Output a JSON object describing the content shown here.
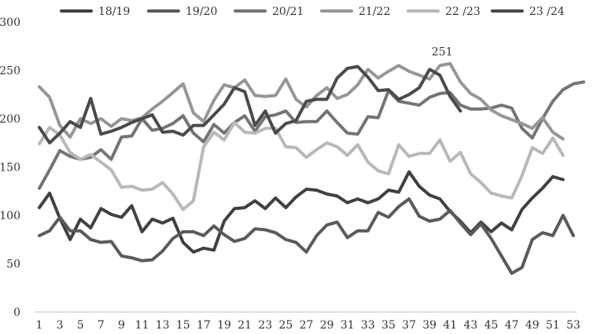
{
  "chart_data": {
    "type": "line",
    "title": "",
    "xlabel": "",
    "ylabel": "",
    "ylim": [
      0,
      300
    ],
    "yticks": [
      0,
      50,
      100,
      150,
      200,
      250,
      300
    ],
    "xlim": [
      1,
      53
    ],
    "xticks": [
      1,
      3,
      5,
      7,
      9,
      11,
      13,
      15,
      17,
      19,
      21,
      23,
      25,
      27,
      29,
      31,
      33,
      35,
      37,
      39,
      41,
      43,
      45,
      47,
      49,
      51,
      53
    ],
    "grid": false,
    "legend_position": "top",
    "annotations": [
      {
        "text": "251",
        "x": 40,
        "y": 251
      }
    ],
    "series": [
      {
        "name": "18/19",
        "color": "#404040",
        "x_start": 1,
        "values": [
          108,
          123,
          97,
          75,
          96,
          87,
          107,
          101,
          98,
          110,
          83,
          96,
          92,
          97,
          72,
          62,
          66,
          64,
          94,
          107,
          108,
          115,
          107,
          118,
          108,
          119,
          127,
          126,
          122,
          120,
          113,
          117,
          113,
          117,
          126,
          124,
          145,
          130,
          121,
          117,
          104,
          94,
          82,
          93,
          83,
          92,
          85,
          106,
          118,
          128,
          140,
          137
        ]
      },
      {
        "name": "19/20",
        "color": "#5a5a5a",
        "x_start": 1,
        "values": [
          79,
          84,
          98,
          84,
          84,
          75,
          72,
          73,
          58,
          56,
          53,
          54,
          63,
          76,
          83,
          83,
          79,
          89,
          80,
          73,
          76,
          86,
          85,
          82,
          75,
          72,
          62,
          79,
          90,
          93,
          77,
          84,
          84,
          103,
          98,
          109,
          117,
          99,
          94,
          96,
          105,
          92,
          80,
          91,
          76,
          58,
          40,
          46,
          75,
          82,
          79,
          100,
          79
        ]
      },
      {
        "name": "20/21",
        "color": "#747474",
        "x_start": 1,
        "values": [
          128,
          147,
          167,
          161,
          158,
          160,
          168,
          158,
          181,
          182,
          200,
          188,
          190,
          195,
          203,
          185,
          176,
          194,
          185,
          196,
          203,
          187,
          202,
          204,
          208,
          196,
          197,
          197,
          208,
          196,
          185,
          184,
          202,
          201,
          229,
          218,
          216,
          214,
          222,
          226,
          227,
          214,
          210,
          210,
          211,
          214,
          211,
          190,
          180,
          200,
          218,
          230,
          236,
          238
        ]
      },
      {
        "name": "21/22",
        "color": "#969696",
        "x_start": 1,
        "values": [
          233,
          222,
          193,
          181,
          200,
          195,
          200,
          192,
          200,
          198,
          201,
          210,
          218,
          227,
          236,
          206,
          197,
          219,
          235,
          232,
          240,
          224,
          223,
          224,
          241,
          220,
          212,
          224,
          232,
          221,
          225,
          235,
          251,
          242,
          249,
          255,
          249,
          245,
          241,
          255,
          257,
          238,
          226,
          220,
          209,
          203,
          199,
          195,
          190,
          201,
          186,
          179
        ]
      },
      {
        "name": "22 /23",
        "color": "#b8b8b8",
        "x_start": 1,
        "values": [
          174,
          191,
          183,
          165,
          158,
          163,
          155,
          147,
          129,
          130,
          126,
          127,
          134,
          122,
          106,
          115,
          171,
          186,
          178,
          196,
          186,
          185,
          190,
          190,
          171,
          170,
          160,
          168,
          175,
          171,
          162,
          173,
          155,
          146,
          143,
          173,
          161,
          164,
          164,
          178,
          156,
          165,
          143,
          134,
          123,
          120,
          118,
          141,
          170,
          164,
          180,
          162
        ]
      },
      {
        "name": "23 /24",
        "color": "#4a4a4a",
        "x_start": 1,
        "values": [
          191,
          175,
          185,
          197,
          191,
          221,
          184,
          187,
          191,
          196,
          200,
          204,
          186,
          187,
          183,
          193,
          193,
          204,
          215,
          232,
          228,
          193,
          208,
          185,
          195,
          198,
          218,
          220,
          220,
          242,
          252,
          254,
          243,
          229,
          230,
          220,
          225,
          232,
          251,
          245,
          223,
          208
        ]
      }
    ]
  }
}
